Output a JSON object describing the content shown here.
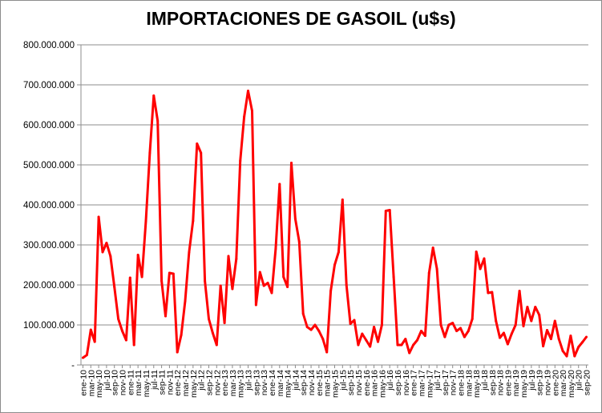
{
  "chart_data": {
    "type": "line",
    "title": "IMPORTACIONES DE GASOIL  (u$s)",
    "xlabel": "",
    "ylabel": "",
    "ylim": [
      0,
      800000000
    ],
    "yticks": [
      0,
      100000000,
      200000000,
      300000000,
      400000000,
      500000000,
      600000000,
      700000000,
      800000000
    ],
    "ytick_labels": [
      "-",
      "100.000.000",
      "200.000.000",
      "300.000.000",
      "400.000.000",
      "500.000.000",
      "600.000.000",
      "700.000.000",
      "800.000.000"
    ],
    "grid": true,
    "legend": "none",
    "line_color": "#ff0000",
    "x_tick_labels": [
      "ene-10",
      "mar-10",
      "may-10",
      "jul-10",
      "sep-10",
      "nov-10",
      "ene-11",
      "mar-11",
      "may-11",
      "jul-11",
      "sep-11",
      "nov-11",
      "ene-12",
      "mar-12",
      "may-12",
      "jul-12",
      "sep-12",
      "nov-12",
      "ene-13",
      "mar-13",
      "may-13",
      "jul-13",
      "sep-13",
      "nov-13",
      "ene-14",
      "mar-14",
      "may-14",
      "jul-14",
      "sep-14",
      "nov-14",
      "ene-15",
      "mar-15",
      "may-15",
      "jul-15",
      "sep-15",
      "nov-15",
      "ene-16",
      "mar-16",
      "may-16",
      "jul-16",
      "sep-16",
      "nov-16",
      "ene-17",
      "mar-17",
      "may-17",
      "jul-17",
      "sep-17",
      "nov-17",
      "ene-18",
      "mar-18",
      "may-18",
      "jul-18",
      "sep-18",
      "nov-18",
      "ene-19",
      "mar-19",
      "may-19",
      "jul-19",
      "sep-19",
      "nov-19",
      "ene-20",
      "mar-20",
      "may-20",
      "jul-20",
      "sep-20"
    ],
    "series": [
      {
        "values": [
          18000000,
          25000000,
          88000000,
          58000000,
          370000000,
          282000000,
          305000000,
          272000000,
          195000000,
          115000000,
          85000000,
          62000000,
          218000000,
          50000000,
          275000000,
          220000000,
          360000000,
          530000000,
          673000000,
          610000000,
          210000000,
          122000000,
          230000000,
          228000000,
          32000000,
          75000000,
          160000000,
          282000000,
          360000000,
          553000000,
          530000000,
          210000000,
          115000000,
          80000000,
          50000000,
          198000000,
          105000000,
          272000000,
          190000000,
          265000000,
          510000000,
          620000000,
          685000000,
          635000000,
          150000000,
          232000000,
          198000000,
          205000000,
          180000000,
          290000000,
          452000000,
          220000000,
          195000000,
          505000000,
          365000000,
          308000000,
          128000000,
          95000000,
          88000000,
          100000000,
          85000000,
          65000000,
          32000000,
          185000000,
          250000000,
          282000000,
          413000000,
          200000000,
          103000000,
          112000000,
          50000000,
          78000000,
          62000000,
          46000000,
          95000000,
          58000000,
          100000000,
          385000000,
          387000000,
          220000000,
          50000000,
          50000000,
          65000000,
          30000000,
          50000000,
          62000000,
          85000000,
          73000000,
          230000000,
          293000000,
          240000000,
          100000000,
          70000000,
          100000000,
          105000000,
          85000000,
          92000000,
          70000000,
          85000000,
          115000000,
          283000000,
          240000000,
          266000000,
          180000000,
          182000000,
          110000000,
          68000000,
          80000000,
          52000000,
          78000000,
          100000000,
          185000000,
          97000000,
          145000000,
          110000000,
          145000000,
          125000000,
          47000000,
          87000000,
          65000000,
          110000000,
          65000000,
          35000000,
          22000000,
          73000000,
          22000000,
          45000000,
          57000000,
          70000000
        ]
      }
    ]
  }
}
